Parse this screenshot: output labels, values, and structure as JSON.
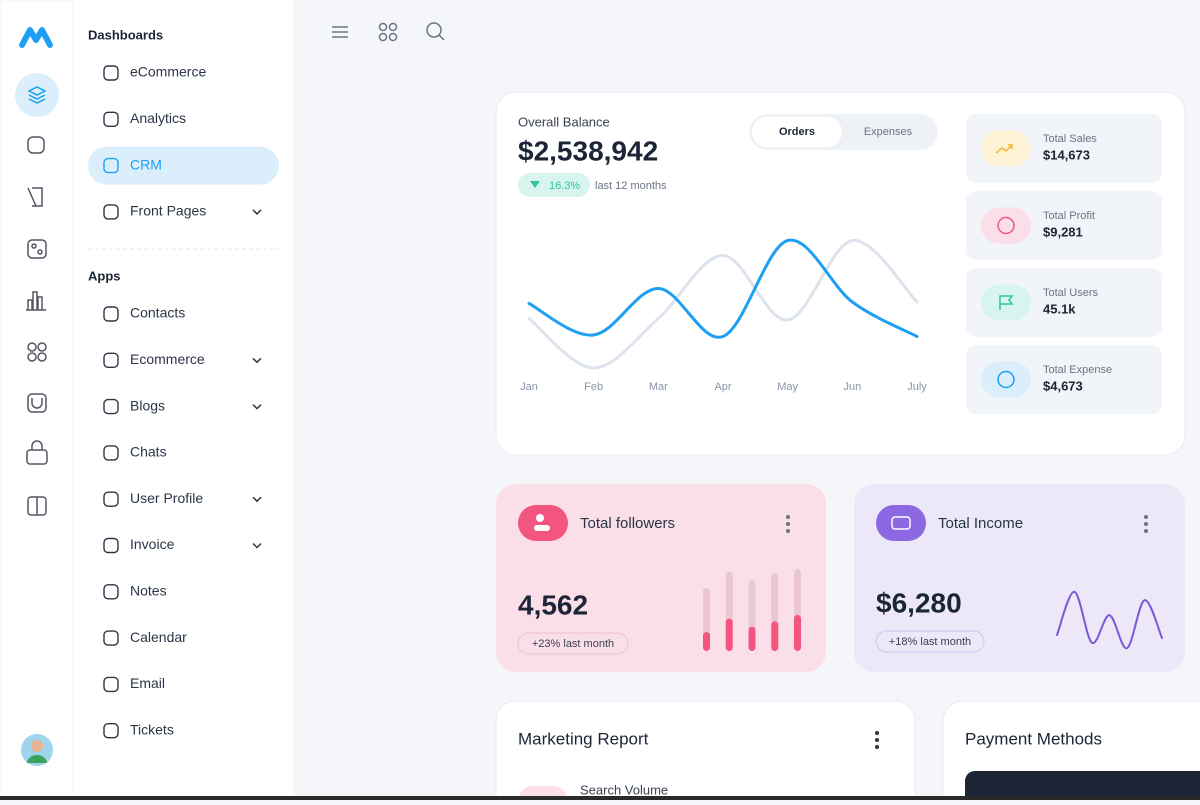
{
  "sidebar": {
    "sections": [
      {
        "title": "Dashboards",
        "items": [
          {
            "label": "eCommerce"
          },
          {
            "label": "Analytics"
          },
          {
            "label": "CRM",
            "active": true
          },
          {
            "label": "Front Pages",
            "submenu": true
          }
        ]
      },
      {
        "title": "Apps",
        "items": [
          {
            "label": "Contacts"
          },
          {
            "label": "Ecommerce",
            "submenu": true
          },
          {
            "label": "Blogs",
            "submenu": true
          },
          {
            "label": "Chats"
          },
          {
            "label": "User Profile",
            "submenu": true
          },
          {
            "label": "Invoice",
            "submenu": true
          },
          {
            "label": "Notes"
          },
          {
            "label": "Calendar"
          },
          {
            "label": "Email"
          },
          {
            "label": "Tickets"
          }
        ]
      }
    ]
  },
  "overview": {
    "title": "Overall Balance",
    "balance": "$2,538,942",
    "change": "16.3%",
    "change_note": "last 12 months",
    "tabs": [
      "Orders",
      "Expenses"
    ],
    "active_tab": 0,
    "chart": {
      "type": "line",
      "categories": [
        "Jan",
        "Feb",
        "Mar",
        "Apr",
        "May",
        "Jun",
        "July"
      ],
      "ylim": [
        0,
        100
      ],
      "series": [
        {
          "color": "#1e9ff2",
          "values": [
            51,
            30,
            61,
            29,
            93,
            52,
            29
          ]
        },
        {
          "color": "#dde3ec",
          "values": [
            41,
            8,
            41,
            83,
            40,
            93,
            52
          ]
        }
      ]
    }
  },
  "stats": [
    {
      "label": "Total Sales",
      "value": "$14,673",
      "color": "#fdf1d6",
      "icon_color": "#f5b533"
    },
    {
      "label": "Total Profit",
      "value": "$9,281",
      "color": "#fbdfe8",
      "icon_color": "#f2557f"
    },
    {
      "label": "Total Users",
      "value": "45.1k",
      "color": "#d7f5ee",
      "icon_color": "#2ec4a0"
    },
    {
      "label": "Total Expense",
      "value": "$4,673",
      "color": "#dbeefb",
      "icon_color": "#1e9ff2"
    }
  ],
  "followers": {
    "title": "Total followers",
    "value": "4,562",
    "note": "+23% last month",
    "chart": {
      "type": "bar",
      "ylim": [
        0,
        100
      ],
      "totals": [
        70,
        88,
        79,
        86,
        91
      ],
      "values": [
        21,
        36,
        27,
        33,
        40
      ],
      "color": "#f2557f",
      "total_color": "#e9c6d2"
    }
  },
  "income": {
    "title": "Total Income",
    "value": "$6,280",
    "note": "+18% last month",
    "chart": {
      "type": "line",
      "ylim": [
        0,
        100
      ],
      "values": [
        25,
        97,
        12,
        58,
        3,
        83,
        20
      ],
      "color": "#7e57d9"
    }
  },
  "marketing": {
    "title": "Marketing Report",
    "item": "Search Volume"
  },
  "payment": {
    "title": "Payment Methods"
  }
}
